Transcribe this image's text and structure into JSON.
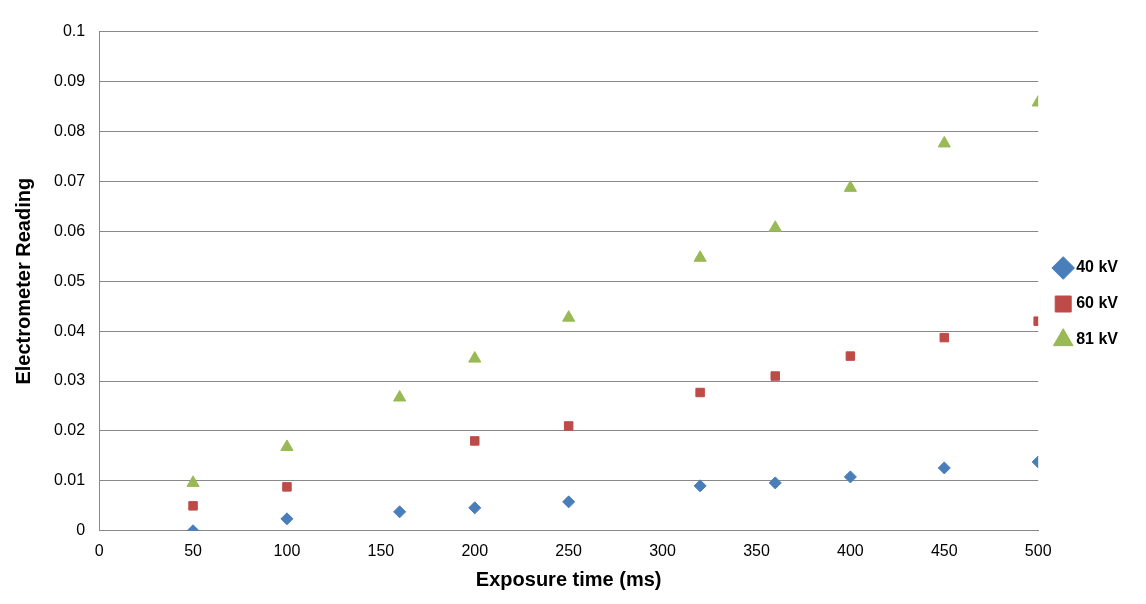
{
  "chart_data": {
    "type": "scatter",
    "xlabel": "Exposure time (ms)",
    "ylabel": "Electrometer Reading",
    "x": [
      50,
      100,
      160,
      200,
      250,
      320,
      360,
      400,
      450,
      500
    ],
    "series": [
      {
        "name": "40 kV",
        "color": "#4a7ebb",
        "marker": "diamond",
        "values": [
          0,
          0.0024,
          0.0038,
          0.0046,
          0.0058,
          0.009,
          0.0096,
          0.0108,
          0.0126,
          0.0138
        ]
      },
      {
        "name": "60 kV",
        "color": "#be4b48",
        "marker": "square",
        "values": [
          0.005,
          0.0088,
          null,
          0.018,
          0.021,
          0.0277,
          0.031,
          0.035,
          0.0387,
          0.042
        ]
      },
      {
        "name": "81 kV",
        "color": "#98b954",
        "marker": "triangle",
        "values": [
          0.0096,
          0.0168,
          0.0267,
          0.0345,
          0.0427,
          0.0547,
          0.0607,
          0.0687,
          0.0776,
          0.0858
        ]
      }
    ],
    "xlim": [
      0,
      500
    ],
    "xticks": [
      0,
      50,
      100,
      150,
      200,
      250,
      300,
      350,
      400,
      450,
      500
    ],
    "ylim": [
      0,
      0.1
    ],
    "yticks": [
      0,
      0.01,
      0.02,
      0.03,
      0.04,
      0.05,
      0.06,
      0.07,
      0.08,
      0.09,
      0.1
    ],
    "grid": "y",
    "legend": "right"
  }
}
